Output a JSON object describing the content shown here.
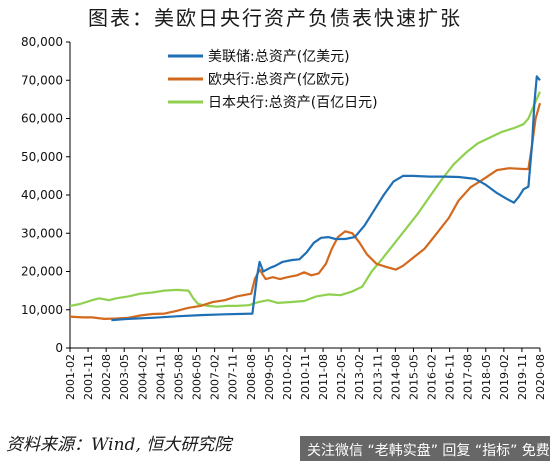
{
  "header": {
    "title": "图表：美欧日央行资产负债表快速扩张"
  },
  "footer": {
    "source": "资料来源：Wind, 恒大研究院"
  },
  "watermark": {
    "text": "关注微信 “老韩实盘” 回复 “指标” 免费领"
  },
  "colors": {
    "fed": "#1f6fb5",
    "ecb": "#d2691e",
    "boj": "#8fd14f",
    "axis": "#000000"
  },
  "chart_data": {
    "type": "line",
    "title": "",
    "xlabel": "",
    "ylabel": "",
    "ylim": [
      0,
      80000
    ],
    "yticks": [
      0,
      10000,
      20000,
      30000,
      40000,
      50000,
      60000,
      70000,
      80000
    ],
    "ytick_labels": [
      "0",
      "10,000",
      "20,000",
      "30,000",
      "40,000",
      "50,000",
      "60,000",
      "70,000",
      "80,000"
    ],
    "xlim": [
      2001.083,
      2020.583
    ],
    "xtick_labels": [
      "2001-02",
      "2001-11",
      "2002-08",
      "2003-05",
      "2004-02",
      "2004-11",
      "2005-08",
      "2006-05",
      "2007-02",
      "2007-11",
      "2008-08",
      "2009-05",
      "2010-02",
      "2010-11",
      "2011-08",
      "2012-05",
      "2013-02",
      "2013-11",
      "2014-08",
      "2015-05",
      "2016-02",
      "2016-11",
      "2017-08",
      "2018-05",
      "2019-02",
      "2019-11",
      "2020-08"
    ],
    "xtick_values": [
      2001.083,
      2001.833,
      2002.583,
      2003.333,
      2004.083,
      2004.833,
      2005.583,
      2006.333,
      2007.083,
      2007.833,
      2008.583,
      2009.333,
      2010.083,
      2010.833,
      2011.583,
      2012.333,
      2013.083,
      2013.833,
      2014.583,
      2015.333,
      2016.083,
      2016.833,
      2017.583,
      2018.333,
      2019.083,
      2019.833,
      2020.583
    ],
    "grid": false,
    "legend_position": "top-center",
    "series": [
      {
        "name": "美联储:总资产(亿美元)",
        "color": "#1f6fb5",
        "points": [
          [
            2002.8,
            7300
          ],
          [
            2003.5,
            7600
          ],
          [
            2004.5,
            7900
          ],
          [
            2005.5,
            8300
          ],
          [
            2006.5,
            8600
          ],
          [
            2007.5,
            8800
          ],
          [
            2008.65,
            9000
          ],
          [
            2008.75,
            14000
          ],
          [
            2008.85,
            19000
          ],
          [
            2008.95,
            22500
          ],
          [
            2009.1,
            20000
          ],
          [
            2009.4,
            21000
          ],
          [
            2009.6,
            21500
          ],
          [
            2009.9,
            22500
          ],
          [
            2010.3,
            23000
          ],
          [
            2010.6,
            23200
          ],
          [
            2010.9,
            25000
          ],
          [
            2011.2,
            27500
          ],
          [
            2011.5,
            28800
          ],
          [
            2011.8,
            29000
          ],
          [
            2012.1,
            28500
          ],
          [
            2012.5,
            28500
          ],
          [
            2012.9,
            29000
          ],
          [
            2013.3,
            32000
          ],
          [
            2013.7,
            36000
          ],
          [
            2014.1,
            40000
          ],
          [
            2014.5,
            43500
          ],
          [
            2014.9,
            45000
          ],
          [
            2015.3,
            45000
          ],
          [
            2016.0,
            44800
          ],
          [
            2016.6,
            44800
          ],
          [
            2017.2,
            44700
          ],
          [
            2017.9,
            44200
          ],
          [
            2018.3,
            42800
          ],
          [
            2018.8,
            40500
          ],
          [
            2019.2,
            39000
          ],
          [
            2019.5,
            38000
          ],
          [
            2019.7,
            39500
          ],
          [
            2019.9,
            41500
          ],
          [
            2020.1,
            42200
          ],
          [
            2020.25,
            53000
          ],
          [
            2020.35,
            64000
          ],
          [
            2020.45,
            71000
          ],
          [
            2020.583,
            70000
          ]
        ]
      },
      {
        "name": "欧央行:总资产(亿欧元)",
        "color": "#d2691e",
        "points": [
          [
            2001.083,
            8200
          ],
          [
            2001.6,
            8000
          ],
          [
            2002.0,
            8000
          ],
          [
            2002.5,
            7600
          ],
          [
            2003.0,
            7700
          ],
          [
            2003.5,
            7900
          ],
          [
            2004.0,
            8500
          ],
          [
            2004.5,
            8900
          ],
          [
            2005.0,
            9000
          ],
          [
            2005.5,
            9700
          ],
          [
            2006.0,
            10500
          ],
          [
            2006.5,
            11000
          ],
          [
            2007.0,
            12000
          ],
          [
            2007.5,
            12500
          ],
          [
            2008.0,
            13500
          ],
          [
            2008.6,
            14200
          ],
          [
            2008.75,
            18000
          ],
          [
            2008.95,
            20500
          ],
          [
            2009.2,
            18000
          ],
          [
            2009.5,
            18500
          ],
          [
            2009.8,
            18000
          ],
          [
            2010.1,
            18500
          ],
          [
            2010.5,
            19000
          ],
          [
            2010.8,
            19800
          ],
          [
            2011.1,
            19000
          ],
          [
            2011.4,
            19500
          ],
          [
            2011.7,
            22000
          ],
          [
            2011.95,
            26000
          ],
          [
            2012.2,
            29000
          ],
          [
            2012.5,
            30500
          ],
          [
            2012.8,
            30000
          ],
          [
            2013.1,
            27500
          ],
          [
            2013.4,
            24500
          ],
          [
            2013.8,
            22000
          ],
          [
            2014.2,
            21200
          ],
          [
            2014.6,
            20500
          ],
          [
            2014.9,
            21500
          ],
          [
            2015.3,
            23500
          ],
          [
            2015.8,
            26000
          ],
          [
            2016.3,
            30000
          ],
          [
            2016.8,
            34000
          ],
          [
            2017.2,
            38500
          ],
          [
            2017.7,
            42000
          ],
          [
            2018.2,
            44000
          ],
          [
            2018.8,
            46500
          ],
          [
            2019.3,
            47000
          ],
          [
            2019.9,
            46800
          ],
          [
            2020.1,
            46800
          ],
          [
            2020.25,
            53000
          ],
          [
            2020.4,
            60000
          ],
          [
            2020.583,
            64000
          ]
        ]
      },
      {
        "name": "日本央行:总资产(百亿日元)",
        "color": "#8fd14f",
        "points": [
          [
            2001.083,
            11000
          ],
          [
            2001.5,
            11500
          ],
          [
            2002.0,
            12500
          ],
          [
            2002.3,
            13000
          ],
          [
            2002.7,
            12500
          ],
          [
            2003.0,
            13000
          ],
          [
            2003.5,
            13500
          ],
          [
            2004.0,
            14200
          ],
          [
            2004.5,
            14500
          ],
          [
            2005.0,
            15000
          ],
          [
            2005.5,
            15200
          ],
          [
            2006.0,
            15000
          ],
          [
            2006.2,
            13000
          ],
          [
            2006.4,
            11500
          ],
          [
            2006.8,
            11000
          ],
          [
            2007.2,
            10800
          ],
          [
            2007.6,
            11000
          ],
          [
            2008.0,
            11000
          ],
          [
            2008.5,
            11200
          ],
          [
            2008.9,
            12000
          ],
          [
            2009.3,
            12500
          ],
          [
            2009.7,
            11800
          ],
          [
            2010.2,
            12000
          ],
          [
            2010.8,
            12300
          ],
          [
            2011.3,
            13500
          ],
          [
            2011.8,
            14000
          ],
          [
            2012.3,
            13800
          ],
          [
            2012.8,
            14800
          ],
          [
            2013.2,
            16000
          ],
          [
            2013.6,
            20000
          ],
          [
            2014.0,
            23000
          ],
          [
            2014.5,
            27000
          ],
          [
            2015.0,
            31000
          ],
          [
            2015.5,
            35000
          ],
          [
            2016.0,
            39500
          ],
          [
            2016.5,
            44000
          ],
          [
            2017.0,
            48000
          ],
          [
            2017.5,
            51000
          ],
          [
            2018.0,
            53500
          ],
          [
            2018.5,
            55000
          ],
          [
            2019.0,
            56500
          ],
          [
            2019.5,
            57500
          ],
          [
            2019.9,
            58500
          ],
          [
            2020.1,
            60000
          ],
          [
            2020.3,
            63000
          ],
          [
            2020.583,
            67000
          ]
        ]
      }
    ]
  }
}
